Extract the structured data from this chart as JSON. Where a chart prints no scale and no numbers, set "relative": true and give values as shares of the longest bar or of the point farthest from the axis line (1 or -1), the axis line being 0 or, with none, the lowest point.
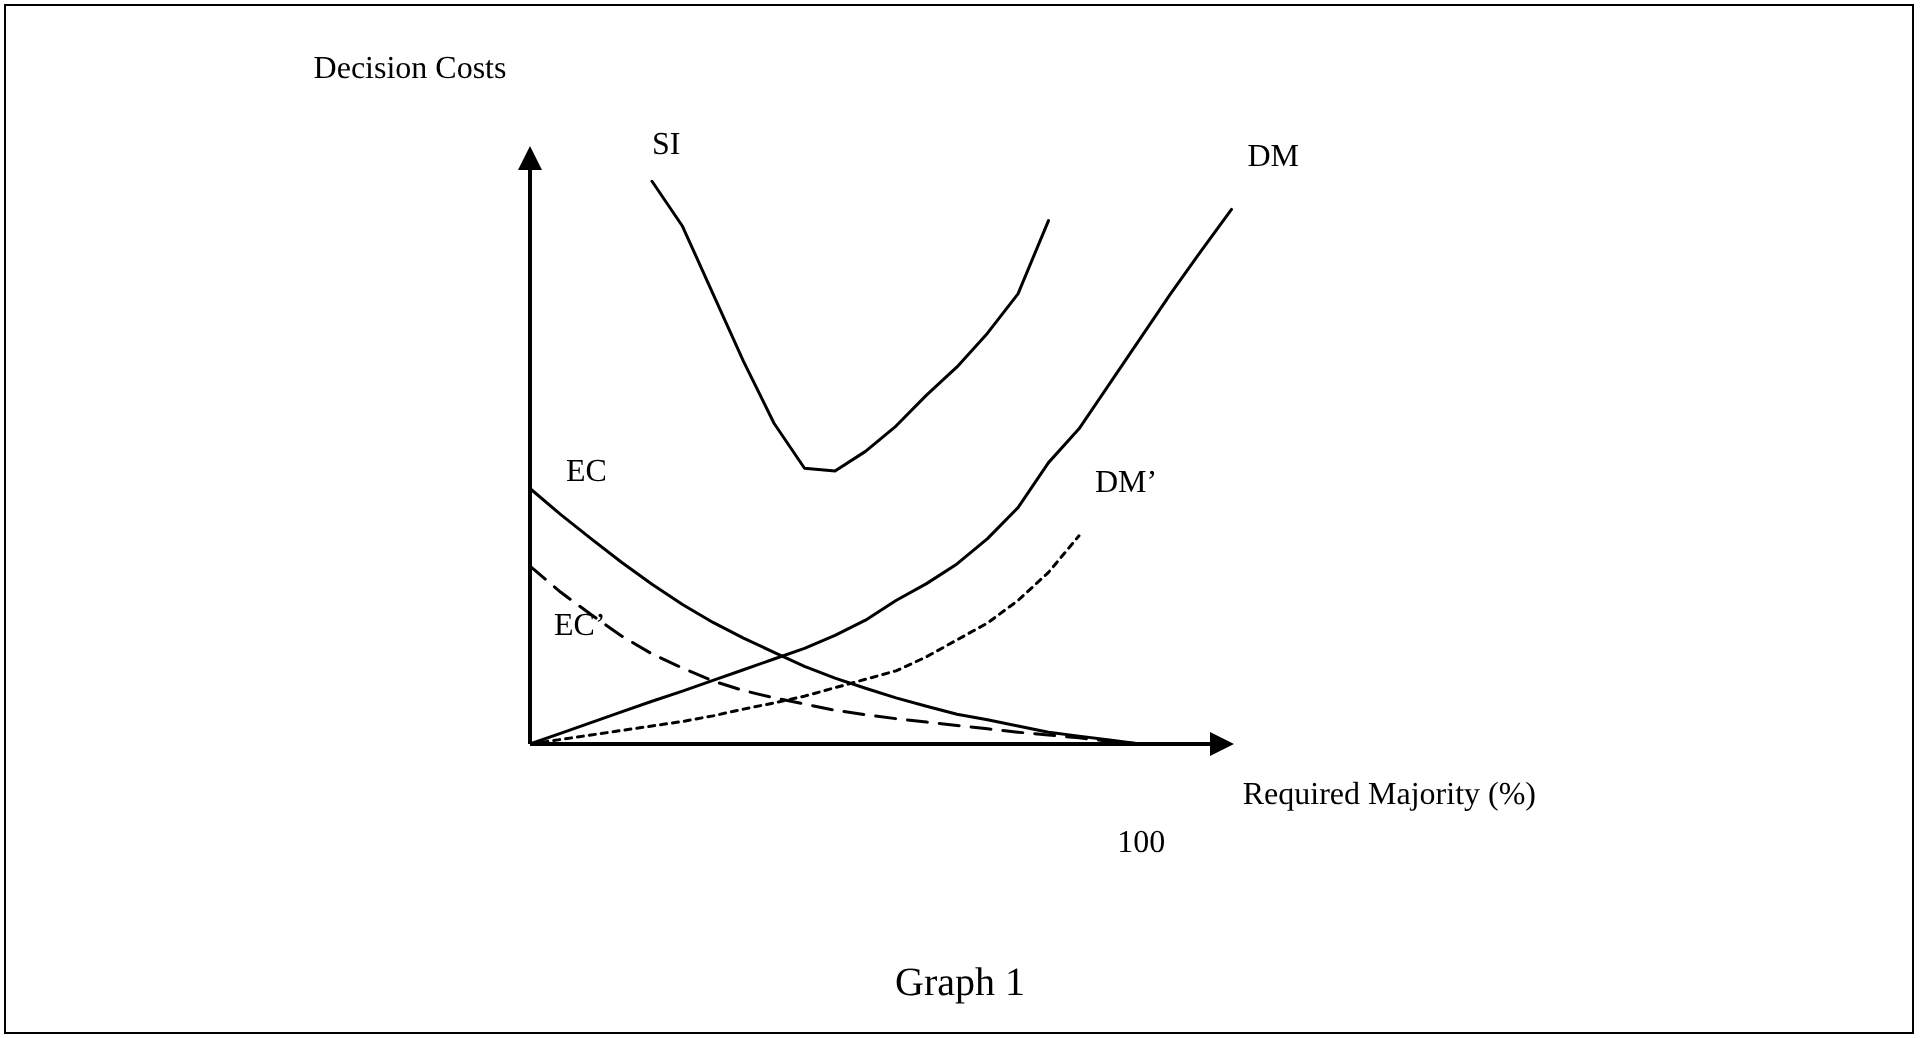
{
  "chart_data": {
    "type": "line",
    "title": "Graph 1",
    "xlabel": "Required Majority (%)",
    "ylabel": "Decision Costs",
    "relative": true,
    "annotations": [
      "100"
    ],
    "legend": false,
    "marker": "none",
    "categories": [
      null,
      null,
      null,
      null,
      null,
      null,
      null,
      null,
      null,
      null,
      null,
      null,
      null,
      null,
      null,
      null,
      null,
      null,
      null,
      null,
      null,
      null,
      null,
      null,
      null
    ],
    "series": [
      {
        "name": "SI",
        "color": "#000000",
        "line_style": "solid",
        "values": [
          null,
          null,
          null,
          null,
          1.0,
          0.92,
          0.8,
          0.68,
          0.57,
          0.49,
          0.485,
          0.52,
          0.565,
          0.62,
          0.67,
          0.73,
          0.8,
          0.93,
          null,
          null,
          null,
          null,
          null,
          null,
          null
        ]
      },
      {
        "name": "DM",
        "color": "#000000",
        "line_style": "solid",
        "values": [
          0,
          0.019,
          0.038,
          0.057,
          0.076,
          0.094,
          0.113,
          0.132,
          0.151,
          0.17,
          0.193,
          0.22,
          0.255,
          0.285,
          0.32,
          0.365,
          0.42,
          0.5,
          0.56,
          0.64,
          0.72,
          0.8,
          0.876,
          0.95,
          null
        ]
      },
      {
        "name": "DM’",
        "color": "#000000",
        "line_style": "dotted",
        "values": [
          0,
          0.008,
          0.016,
          0.024,
          0.032,
          0.04,
          0.05,
          0.062,
          0.073,
          0.085,
          0.1,
          0.115,
          0.13,
          0.155,
          0.185,
          0.215,
          0.255,
          0.305,
          0.37,
          null,
          null,
          null,
          null,
          null,
          null
        ]
      },
      {
        "name": "EC",
        "color": "#000000",
        "line_style": "solid",
        "values": [
          0.454,
          0.408,
          0.365,
          0.323,
          0.284,
          0.248,
          0.216,
          0.188,
          0.163,
          0.138,
          0.117,
          0.099,
          0.082,
          0.067,
          0.053,
          0.043,
          0.032,
          0.021,
          0.014,
          0.007,
          0,
          null,
          null,
          null,
          null
        ]
      },
      {
        "name": "EC’",
        "color": "#000000",
        "line_style": "dashed",
        "values": [
          0.316,
          0.27,
          0.23,
          0.192,
          0.16,
          0.135,
          0.112,
          0.095,
          0.082,
          0.071,
          0.06,
          0.052,
          0.045,
          0.039,
          0.033,
          0.027,
          0.021,
          0.016,
          0.011,
          0.005,
          0,
          null,
          null,
          null,
          null
        ]
      }
    ]
  }
}
